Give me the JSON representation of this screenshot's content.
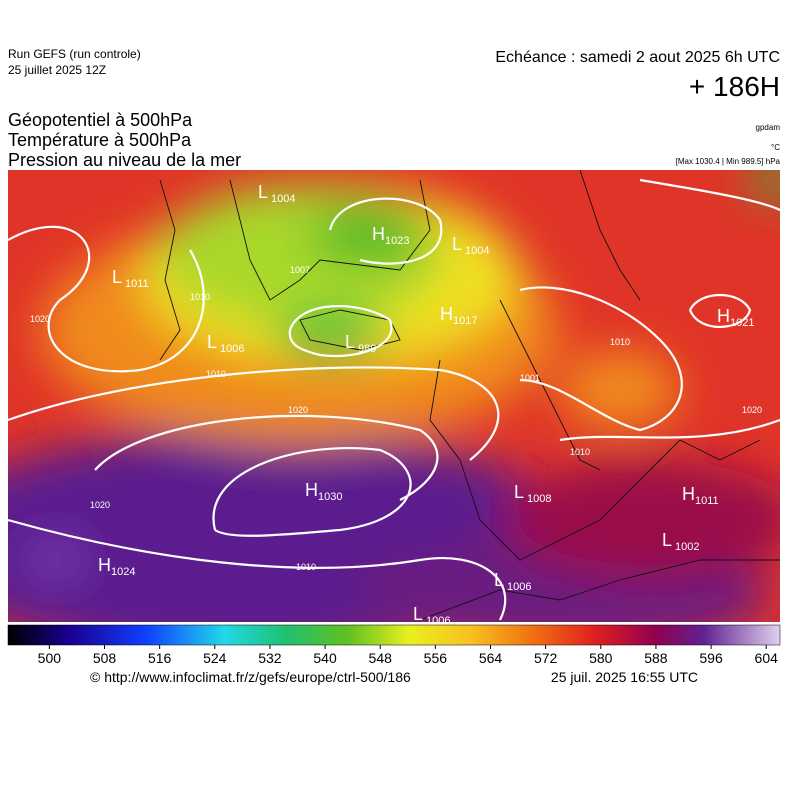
{
  "header": {
    "run": "Run GEFS (run controle)",
    "run_date": "25 juillet 2025 12Z",
    "valid": "Echéance : samedi 2 aout 2025 6h UTC",
    "lead": "+ 186H",
    "fields": [
      "Géopotentiel à 500hPa",
      "Température à 500hPa",
      "Pression au niveau de la mer"
    ],
    "units": [
      "gpdam",
      "°C",
      "[Max 1030.4 | Min 989.5] hPa"
    ]
  },
  "map": {
    "centers": [
      {
        "kind": "L",
        "value": 1004
      },
      {
        "kind": "H",
        "value": 1023
      },
      {
        "kind": "L",
        "value": 1004
      },
      {
        "kind": "L",
        "value": 1011
      },
      {
        "kind": "H",
        "value": 1017
      },
      {
        "kind": "L",
        "value": 1006
      },
      {
        "kind": "L",
        "value": 989
      },
      {
        "kind": "H",
        "value": 1021
      },
      {
        "kind": "H",
        "value": 1030
      },
      {
        "kind": "L",
        "value": 1008
      },
      {
        "kind": "H",
        "value": 1011
      },
      {
        "kind": "L",
        "value": 1002
      },
      {
        "kind": "H",
        "value": 1024
      },
      {
        "kind": "L",
        "value": 1006
      },
      {
        "kind": "L",
        "value": 1006
      }
    ],
    "isobar_labels": [
      1020,
      1010,
      1007,
      1010,
      1010,
      1020,
      1020,
      1020,
      1010,
      1010,
      1001
    ]
  },
  "colorbar": {
    "lim": [
      494,
      606
    ],
    "ticks": [
      500,
      508,
      516,
      524,
      532,
      540,
      548,
      556,
      564,
      572,
      580,
      588,
      596,
      604
    ]
  },
  "footer": {
    "source": "© http://www.infoclimat.fr/z/gefs/europe/ctrl-500/186",
    "timestamp": "25 juil. 2025 16:55 UTC"
  }
}
